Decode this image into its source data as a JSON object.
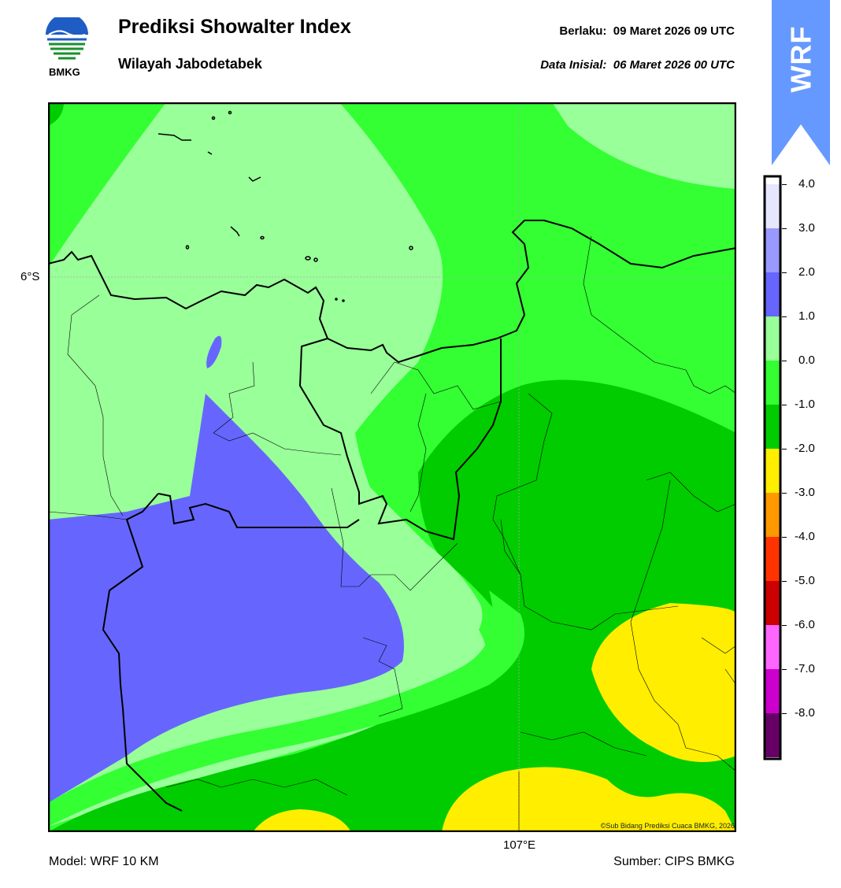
{
  "header": {
    "title": "Prediksi Showalter Index",
    "region": "Wilayah Jabodetabek",
    "valid_label": "Berlaku:",
    "valid_time": "09 Maret 2026 09 UTC",
    "init_label": "Data Inisial:",
    "init_time": "06 Maret 2026 00 UTC",
    "logo_text": "BMKG"
  },
  "banner": {
    "text": "WRF",
    "color": "#6699ff"
  },
  "map": {
    "lat_label": "6°S",
    "lon_label": "107°E",
    "copyright": "©Sub Bidang Prediksi Cuaca BMKG, 2026"
  },
  "footer": {
    "model": "Model: WRF 10 KM",
    "source": "Sumber: CIPS BMKG"
  },
  "colorbar": {
    "labels": [
      "4.0",
      "3.0",
      "2.0",
      "1.0",
      "0.0",
      "-1.0",
      "-2.0",
      "-3.0",
      "-4.0",
      "-5.0",
      "-6.0",
      "-7.0",
      "-8.0"
    ],
    "colors": [
      "#ffffff",
      "#e6e6ff",
      "#9999ff",
      "#6666ff",
      "#99ff99",
      "#33ff33",
      "#00cc00",
      "#ffee00",
      "#ff9900",
      "#ff3300",
      "#cc0000",
      "#ff66ff",
      "#cc00cc",
      "#660066"
    ]
  }
}
